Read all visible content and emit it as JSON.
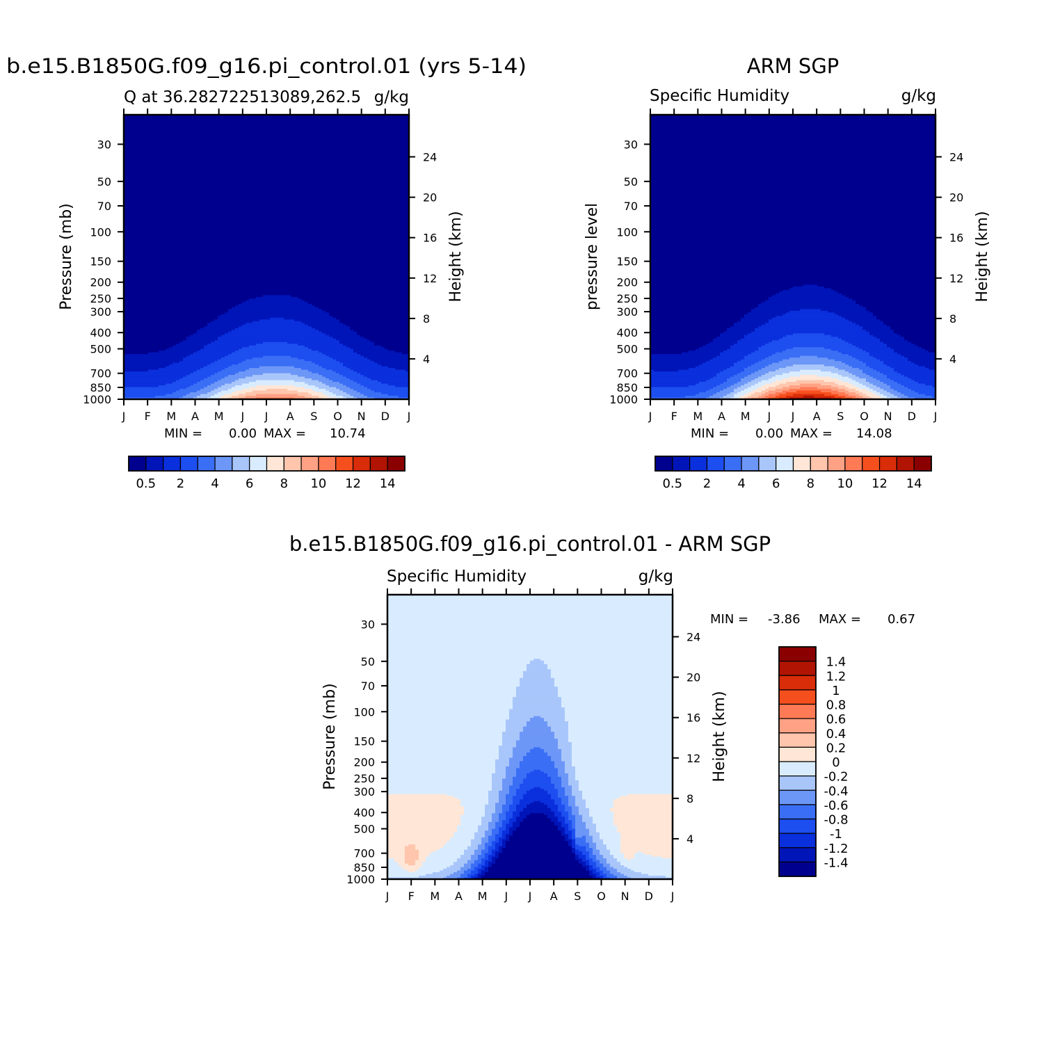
{
  "colors": {
    "q_levels": [
      "#00008f",
      "#0015b8",
      "#0a2fdc",
      "#1d4ef0",
      "#3a6ef5",
      "#6d97f7",
      "#a9c6fb",
      "#d9ecff",
      "#ffe6d6",
      "#ffc6ad",
      "#ffa184",
      "#ff7a55",
      "#f64f1e",
      "#d92d09",
      "#b11402",
      "#8a0000"
    ],
    "diff_levels": [
      "#00008f",
      "#0015b8",
      "#0a2fdc",
      "#1d4ef0",
      "#3a6ef5",
      "#6d97f7",
      "#a9c6fb",
      "#d9ecff",
      "#ffe6d6",
      "#ffc6ad",
      "#ffa184",
      "#ff7a55",
      "#f64f1e",
      "#d92d09",
      "#b11402",
      "#8a0000"
    ]
  },
  "chart_data": [
    {
      "type": "heatmap",
      "title": "b.e15.B1850G.f09_g16.pi_control.01 (yrs 5-14)",
      "subtitle_left": "Q at 36.282722513089,262.5",
      "subtitle_right": "g/kg",
      "ylabel": "Pressure (mb)",
      "y2label": "Height (km)",
      "x_ticks": [
        "J",
        "F",
        "M",
        "A",
        "M",
        "J",
        "J",
        "A",
        "S",
        "O",
        "N",
        "D",
        "J"
      ],
      "y_ticks": [
        "30",
        "50",
        "70",
        "100",
        "150",
        "200",
        "250",
        "300",
        "400",
        "500",
        "700",
        "850",
        "1000"
      ],
      "y2_ticks": [
        "24",
        "20",
        "16",
        "12",
        "8",
        "4"
      ],
      "min_label": "MIN =",
      "min_value": "0.00",
      "max_label": "MAX =",
      "max_value": "10.74",
      "peak": 10.74,
      "peak_month": 6.4,
      "colorbar_labels": [
        "0.5",
        "2",
        "4",
        "6",
        "8",
        "10",
        "12",
        "14"
      ]
    },
    {
      "type": "heatmap",
      "title": "ARM SGP",
      "subtitle_left": "Specific Humidity",
      "subtitle_right": "g/kg",
      "ylabel": "pressure level",
      "y2label": "Height (km)",
      "x_ticks": [
        "J",
        "F",
        "M",
        "A",
        "M",
        "J",
        "J",
        "A",
        "S",
        "O",
        "N",
        "D",
        "J"
      ],
      "y_ticks": [
        "30",
        "50",
        "70",
        "100",
        "150",
        "200",
        "250",
        "300",
        "400",
        "500",
        "700",
        "850",
        "1000"
      ],
      "y2_ticks": [
        "24",
        "20",
        "16",
        "12",
        "8",
        "4"
      ],
      "min_label": "MIN =",
      "min_value": "0.00",
      "max_label": "MAX =",
      "max_value": "14.08",
      "peak": 14.08,
      "peak_month": 6.7,
      "colorbar_labels": [
        "0.5",
        "2",
        "4",
        "6",
        "8",
        "10",
        "12",
        "14"
      ]
    },
    {
      "type": "heatmap",
      "title": "b.e15.B1850G.f09_g16.pi_control.01 - ARM SGP",
      "subtitle_left": "Specific Humidity",
      "subtitle_right": "g/kg",
      "ylabel": "Pressure (mb)",
      "y2label": "Height (km)",
      "x_ticks": [
        "J",
        "F",
        "M",
        "A",
        "M",
        "J",
        "J",
        "A",
        "S",
        "O",
        "N",
        "D",
        "J"
      ],
      "y_ticks": [
        "30",
        "50",
        "70",
        "100",
        "150",
        "200",
        "250",
        "300",
        "400",
        "500",
        "700",
        "850",
        "1000"
      ],
      "y2_ticks": [
        "24",
        "20",
        "16",
        "12",
        "8",
        "4"
      ],
      "min_label": "MIN =",
      "min_value": "-3.86",
      "max_label": "MAX =",
      "max_value": "0.67",
      "colorbar_labels": [
        "1.4",
        "1.2",
        "1",
        "0.8",
        "0.6",
        "0.4",
        "0.2",
        "0",
        "-0.2",
        "-0.4",
        "-0.6",
        "-0.8",
        "-1",
        "-1.2",
        "-1.4"
      ]
    }
  ]
}
